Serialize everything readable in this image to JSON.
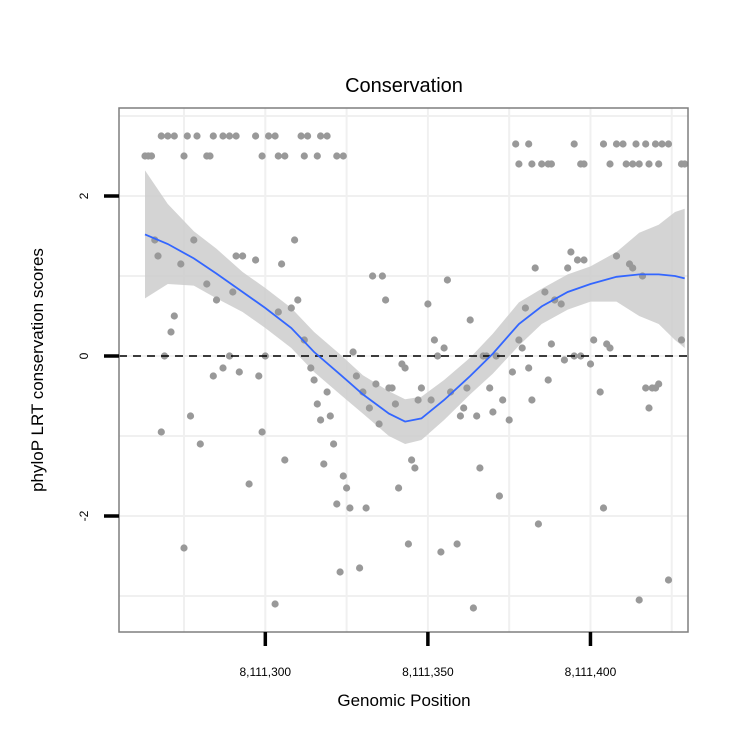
{
  "chart_data": {
    "type": "scatter",
    "title": "Conservation",
    "xlabel": "Genomic Position",
    "ylabel": "phyloP LRT conservation scores",
    "xlim": [
      8111255,
      8111430
    ],
    "ylim": [
      -3.45,
      3.1
    ],
    "x_ticks": [
      8111300,
      8111350,
      8111400
    ],
    "x_tick_labels": [
      "8,111,300",
      "8,111,350",
      "8,111,400"
    ],
    "y_ticks": [
      -2,
      0,
      2
    ],
    "y_tick_labels": [
      "-2",
      "0",
      "2"
    ],
    "grid": true,
    "reference_line": 0,
    "colors": {
      "points": "#999999",
      "smooth_line": "#3366ff",
      "confidence_band": "#cccccc",
      "panel_border": "#7f7f7f",
      "grid": "#f0f0f0",
      "reference_line": "#000000"
    },
    "points": [
      [
        8111263,
        2.5
      ],
      [
        8111264,
        2.5
      ],
      [
        8111265,
        2.5
      ],
      [
        8111268,
        2.75
      ],
      [
        8111270,
        2.75
      ],
      [
        8111272,
        2.75
      ],
      [
        8111275,
        2.5
      ],
      [
        8111276,
        2.75
      ],
      [
        8111279,
        2.75
      ],
      [
        8111282,
        2.5
      ],
      [
        8111283,
        2.5
      ],
      [
        8111284,
        2.75
      ],
      [
        8111287,
        2.75
      ],
      [
        8111289,
        2.75
      ],
      [
        8111291,
        2.75
      ],
      [
        8111297,
        2.75
      ],
      [
        8111299,
        2.5
      ],
      [
        8111301,
        2.75
      ],
      [
        8111303,
        2.75
      ],
      [
        8111304,
        2.5
      ],
      [
        8111306,
        2.5
      ],
      [
        8111311,
        2.75
      ],
      [
        8111312,
        2.5
      ],
      [
        8111313,
        2.75
      ],
      [
        8111316,
        2.5
      ],
      [
        8111317,
        2.75
      ],
      [
        8111319,
        2.75
      ],
      [
        8111322,
        2.5
      ],
      [
        8111324,
        2.5
      ],
      [
        8111377,
        2.65
      ],
      [
        8111378,
        2.4
      ],
      [
        8111381,
        2.65
      ],
      [
        8111382,
        2.4
      ],
      [
        8111385,
        2.4
      ],
      [
        8111387,
        2.4
      ],
      [
        8111388,
        2.4
      ],
      [
        8111395,
        2.65
      ],
      [
        8111397,
        2.4
      ],
      [
        8111398,
        2.4
      ],
      [
        8111404,
        2.65
      ],
      [
        8111406,
        2.4
      ],
      [
        8111408,
        2.65
      ],
      [
        8111410,
        2.65
      ],
      [
        8111411,
        2.4
      ],
      [
        8111413,
        2.4
      ],
      [
        8111414,
        2.65
      ],
      [
        8111415,
        2.4
      ],
      [
        8111417,
        2.65
      ],
      [
        8111418,
        2.4
      ],
      [
        8111420,
        2.65
      ],
      [
        8111421,
        2.4
      ],
      [
        8111422,
        2.65
      ],
      [
        8111424,
        2.65
      ],
      [
        8111428,
        2.4
      ],
      [
        8111429,
        2.4
      ],
      [
        8111266,
        1.45
      ],
      [
        8111267,
        1.25
      ],
      [
        8111268,
        -0.95
      ],
      [
        8111269,
        0
      ],
      [
        8111271,
        0.3
      ],
      [
        8111272,
        0.5
      ],
      [
        8111274,
        1.15
      ],
      [
        8111275,
        -2.4
      ],
      [
        8111277,
        -0.75
      ],
      [
        8111278,
        1.45
      ],
      [
        8111280,
        -1.1
      ],
      [
        8111282,
        0.9
      ],
      [
        8111284,
        -0.25
      ],
      [
        8111285,
        0.7
      ],
      [
        8111287,
        -0.15
      ],
      [
        8111289,
        0
      ],
      [
        8111290,
        0.8
      ],
      [
        8111291,
        1.25
      ],
      [
        8111292,
        -0.2
      ],
      [
        8111293,
        1.25
      ],
      [
        8111295,
        -1.6
      ],
      [
        8111297,
        1.2
      ],
      [
        8111298,
        -0.25
      ],
      [
        8111299,
        -0.95
      ],
      [
        8111300,
        0
      ],
      [
        8111303,
        -3.1
      ],
      [
        8111304,
        0.55
      ],
      [
        8111305,
        1.15
      ],
      [
        8111306,
        -1.3
      ],
      [
        8111308,
        0.6
      ],
      [
        8111309,
        1.45
      ],
      [
        8111310,
        0.7
      ],
      [
        8111312,
        0.2
      ],
      [
        8111314,
        -0.15
      ],
      [
        8111315,
        -0.3
      ],
      [
        8111316,
        -0.6
      ],
      [
        8111317,
        -0.8
      ],
      [
        8111318,
        -1.35
      ],
      [
        8111319,
        -0.45
      ],
      [
        8111320,
        -0.75
      ],
      [
        8111321,
        -1.1
      ],
      [
        8111322,
        -1.85
      ],
      [
        8111323,
        -2.7
      ],
      [
        8111324,
        -1.5
      ],
      [
        8111325,
        -1.65
      ],
      [
        8111326,
        -1.9
      ],
      [
        8111327,
        0.05
      ],
      [
        8111328,
        -0.25
      ],
      [
        8111329,
        -2.65
      ],
      [
        8111330,
        -0.45
      ],
      [
        8111331,
        -1.9
      ],
      [
        8111332,
        -0.65
      ],
      [
        8111333,
        1.0
      ],
      [
        8111334,
        -0.35
      ],
      [
        8111335,
        -0.85
      ],
      [
        8111336,
        1.0
      ],
      [
        8111337,
        0.7
      ],
      [
        8111338,
        -0.4
      ],
      [
        8111339,
        -0.4
      ],
      [
        8111340,
        -0.6
      ],
      [
        8111341,
        -1.65
      ],
      [
        8111342,
        -0.1
      ],
      [
        8111343,
        -0.15
      ],
      [
        8111344,
        -2.35
      ],
      [
        8111345,
        -1.3
      ],
      [
        8111346,
        -1.4
      ],
      [
        8111347,
        -0.55
      ],
      [
        8111348,
        -0.4
      ],
      [
        8111350,
        0.65
      ],
      [
        8111351,
        -0.55
      ],
      [
        8111352,
        0.2
      ],
      [
        8111353,
        0
      ],
      [
        8111354,
        -2.45
      ],
      [
        8111355,
        0.1
      ],
      [
        8111356,
        0.95
      ],
      [
        8111357,
        -0.45
      ],
      [
        8111359,
        -2.35
      ],
      [
        8111360,
        -0.75
      ],
      [
        8111361,
        -0.65
      ],
      [
        8111362,
        -0.4
      ],
      [
        8111363,
        0.45
      ],
      [
        8111364,
        -3.15
      ],
      [
        8111365,
        -0.75
      ],
      [
        8111366,
        -1.4
      ],
      [
        8111367,
        0
      ],
      [
        8111368,
        0
      ],
      [
        8111369,
        -0.4
      ],
      [
        8111370,
        -0.7
      ],
      [
        8111371,
        0
      ],
      [
        8111372,
        -1.75
      ],
      [
        8111373,
        -0.55
      ],
      [
        8111375,
        -0.8
      ],
      [
        8111376,
        -0.2
      ],
      [
        8111378,
        0.2
      ],
      [
        8111379,
        0.1
      ],
      [
        8111380,
        0.6
      ],
      [
        8111381,
        -0.15
      ],
      [
        8111382,
        -0.55
      ],
      [
        8111383,
        1.1
      ],
      [
        8111384,
        -2.1
      ],
      [
        8111386,
        0.8
      ],
      [
        8111387,
        -0.3
      ],
      [
        8111388,
        0.15
      ],
      [
        8111389,
        0.7
      ],
      [
        8111391,
        0.65
      ],
      [
        8111392,
        -0.05
      ],
      [
        8111393,
        1.1
      ],
      [
        8111394,
        1.3
      ],
      [
        8111395,
        0
      ],
      [
        8111396,
        1.2
      ],
      [
        8111397,
        0
      ],
      [
        8111398,
        1.2
      ],
      [
        8111400,
        -0.1
      ],
      [
        8111401,
        0.2
      ],
      [
        8111403,
        -0.45
      ],
      [
        8111404,
        -1.9
      ],
      [
        8111405,
        0.15
      ],
      [
        8111406,
        0.1
      ],
      [
        8111408,
        1.25
      ],
      [
        8111412,
        1.15
      ],
      [
        8111413,
        1.1
      ],
      [
        8111415,
        -3.05
      ],
      [
        8111416,
        1.0
      ],
      [
        8111417,
        -0.4
      ],
      [
        8111418,
        -0.65
      ],
      [
        8111419,
        -0.4
      ],
      [
        8111420,
        -0.4
      ],
      [
        8111421,
        -0.35
      ],
      [
        8111424,
        -2.8
      ],
      [
        8111428,
        0.2
      ]
    ],
    "smooth": {
      "x": [
        8111263,
        8111270,
        8111278,
        8111285,
        8111293,
        8111300,
        8111308,
        8111315,
        8111323,
        8111330,
        8111338,
        8111343,
        8111348,
        8111355,
        8111363,
        8111370,
        8111378,
        8111385,
        8111393,
        8111400,
        8111408,
        8111415,
        8111421,
        8111426,
        8111429
      ],
      "y": [
        1.52,
        1.4,
        1.22,
        1.03,
        0.8,
        0.6,
        0.35,
        0.05,
        -0.23,
        -0.48,
        -0.72,
        -0.82,
        -0.78,
        -0.55,
        -0.25,
        0.03,
        0.4,
        0.62,
        0.8,
        0.9,
        0.99,
        1.02,
        1.02,
        1.0,
        0.97
      ],
      "lower": [
        0.72,
        0.9,
        0.88,
        0.72,
        0.55,
        0.35,
        0.1,
        -0.2,
        -0.48,
        -0.72,
        -1.0,
        -1.1,
        -1.05,
        -0.8,
        -0.48,
        -0.22,
        0.13,
        0.4,
        0.58,
        0.68,
        0.68,
        0.5,
        0.4,
        0.2,
        0.1
      ],
      "upper": [
        2.32,
        1.9,
        1.56,
        1.34,
        1.05,
        0.85,
        0.6,
        0.3,
        0.02,
        -0.24,
        -0.44,
        -0.54,
        -0.51,
        -0.3,
        -0.02,
        0.28,
        0.67,
        0.84,
        1.02,
        1.12,
        1.3,
        1.54,
        1.64,
        1.8,
        1.84
      ]
    }
  }
}
